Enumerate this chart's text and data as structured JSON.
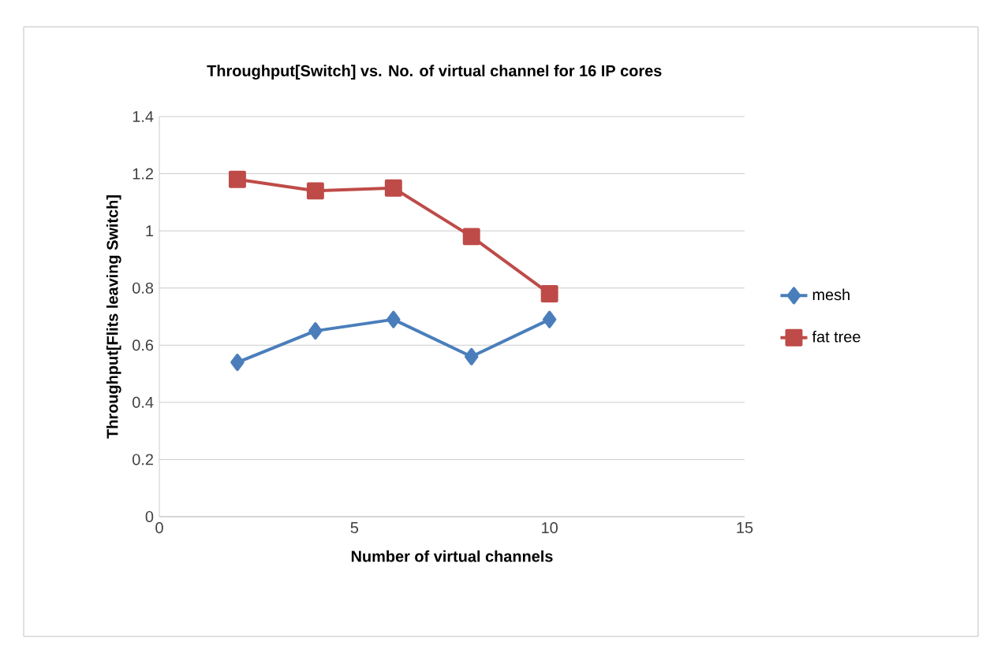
{
  "chart_data": {
    "type": "line",
    "title": "Throughput[Switch] vs. No. of virtual channel  for 16 IP cores",
    "xlabel": "Number of virtual channels",
    "ylabel": "Throughput[Flits leaving Switch]",
    "x": [
      2,
      4,
      6,
      8,
      10
    ],
    "series": [
      {
        "name": "mesh",
        "color": "#4a7ebb",
        "marker": "diamond",
        "values": [
          0.54,
          0.65,
          0.69,
          0.56,
          0.69
        ]
      },
      {
        "name": "fat tree",
        "color": "#be4b48",
        "marker": "square",
        "values": [
          1.18,
          1.14,
          1.15,
          0.98,
          0.78
        ]
      }
    ],
    "xlim": [
      0,
      15
    ],
    "xticks": [
      0,
      5,
      10,
      15
    ],
    "ylim": [
      0,
      1.4
    ],
    "yticks": [
      0,
      0.2,
      0.4,
      0.6,
      0.8,
      1,
      1.2,
      1.4
    ],
    "grid": "y",
    "legend": "right",
    "line_style": "solid"
  }
}
